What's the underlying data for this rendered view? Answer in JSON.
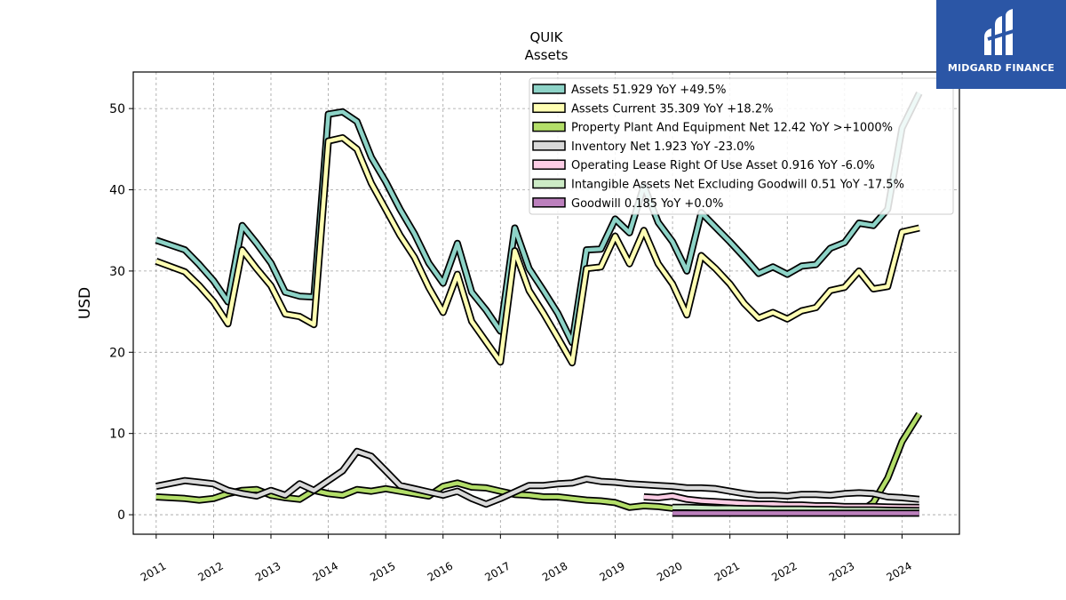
{
  "logo": {
    "text": "MIDGARD FINANCE"
  },
  "chart_data": {
    "type": "line",
    "title": "QUIK",
    "subtitle": "Assets",
    "xlabel": "",
    "ylabel": "USD",
    "ylim": [
      -2.4,
      54.5
    ],
    "yticks": [
      0,
      10,
      20,
      30,
      40,
      50
    ],
    "xlim": [
      2010.6,
      2025.0
    ],
    "xticks": [
      2011,
      2012,
      2013,
      2014,
      2015,
      2016,
      2017,
      2018,
      2019,
      2020,
      2021,
      2022,
      2023,
      2024
    ],
    "grid": true,
    "legend_position": "top-right",
    "series": [
      {
        "name": "Assets",
        "legend": "Assets  51.929 YoY +49.5%",
        "color": "#8dd3c7",
        "x": [
          2011.0,
          2011.5,
          2011.75,
          2012.0,
          2012.25,
          2012.5,
          2012.75,
          2013.0,
          2013.25,
          2013.5,
          2013.75,
          2014.0,
          2014.25,
          2014.5,
          2014.75,
          2015.0,
          2015.25,
          2015.5,
          2015.75,
          2016.0,
          2016.25,
          2016.5,
          2016.75,
          2017.0,
          2017.25,
          2017.5,
          2017.75,
          2018.0,
          2018.25,
          2018.5,
          2018.75,
          2019.0,
          2019.25,
          2019.5,
          2019.75,
          2020.0,
          2020.25,
          2020.5,
          2020.75,
          2021.0,
          2021.25,
          2021.5,
          2021.75,
          2022.0,
          2022.25,
          2022.5,
          2022.75,
          2023.0,
          2023.25,
          2023.5,
          2023.75,
          2024.0,
          2024.3
        ],
        "values": [
          33.8,
          32.6,
          30.8,
          28.8,
          26.2,
          35.6,
          33.4,
          31.0,
          27.4,
          26.9,
          26.8,
          49.3,
          49.6,
          48.4,
          44.0,
          41.0,
          37.6,
          34.6,
          31.0,
          28.5,
          33.4,
          27.4,
          25.2,
          22.6,
          35.3,
          30.3,
          27.6,
          24.8,
          21.2,
          32.6,
          32.7,
          36.4,
          34.7,
          40.5,
          36.0,
          33.6,
          30.0,
          37.2,
          35.4,
          33.6,
          31.7,
          29.7,
          30.5,
          29.6,
          30.6,
          30.8,
          32.8,
          33.5,
          35.9,
          35.6,
          37.6,
          47.6,
          51.9
        ]
      },
      {
        "name": "Assets Current",
        "legend": "Assets Current  35.309 YoY +18.2%",
        "color": "#ffffb3",
        "x": [
          2011.0,
          2011.5,
          2011.75,
          2012.0,
          2012.25,
          2012.5,
          2012.75,
          2013.0,
          2013.25,
          2013.5,
          2013.75,
          2014.0,
          2014.25,
          2014.5,
          2014.75,
          2015.0,
          2015.25,
          2015.5,
          2015.75,
          2016.0,
          2016.25,
          2016.5,
          2016.75,
          2017.0,
          2017.25,
          2017.5,
          2017.75,
          2018.0,
          2018.25,
          2018.5,
          2018.75,
          2019.0,
          2019.25,
          2019.5,
          2019.75,
          2020.0,
          2020.25,
          2020.5,
          2020.75,
          2021.0,
          2021.25,
          2021.5,
          2021.75,
          2022.0,
          2022.25,
          2022.5,
          2022.75,
          2023.0,
          2023.25,
          2023.5,
          2023.75,
          2024.0,
          2024.3
        ],
        "values": [
          31.2,
          29.9,
          28.2,
          26.2,
          23.5,
          32.6,
          30.3,
          28.2,
          24.7,
          24.4,
          23.4,
          46.0,
          46.4,
          45.0,
          40.8,
          37.6,
          34.4,
          31.7,
          28.0,
          24.9,
          29.6,
          23.8,
          21.3,
          18.8,
          32.5,
          27.6,
          24.8,
          21.8,
          18.7,
          30.3,
          30.5,
          34.3,
          30.9,
          35.0,
          30.9,
          28.4,
          24.6,
          31.9,
          30.3,
          28.4,
          26.0,
          24.2,
          24.9,
          24.1,
          25.1,
          25.5,
          27.6,
          28.0,
          30.0,
          27.8,
          28.1,
          34.8,
          35.3
        ]
      },
      {
        "name": "Property Plant And Equipment Net",
        "legend": "Property Plant And Equipment Net  12.42 YoY >+1000%",
        "color": "#b3de69",
        "x": [
          2011.0,
          2011.5,
          2011.75,
          2012.0,
          2012.25,
          2012.5,
          2012.75,
          2013.0,
          2013.25,
          2013.5,
          2013.75,
          2014.0,
          2014.25,
          2014.5,
          2014.75,
          2015.0,
          2015.25,
          2015.5,
          2015.75,
          2016.0,
          2016.25,
          2016.5,
          2016.75,
          2017.0,
          2017.25,
          2017.5,
          2017.75,
          2018.0,
          2018.25,
          2018.5,
          2018.75,
          2019.0,
          2019.25,
          2019.5,
          2019.75,
          2020.0,
          2020.25,
          2020.5,
          2020.75,
          2021.0,
          2021.25,
          2021.5,
          2021.75,
          2022.0,
          2022.25,
          2022.5,
          2022.75,
          2023.0,
          2023.25,
          2023.5,
          2023.75,
          2024.0,
          2024.3
        ],
        "values": [
          2.2,
          2.0,
          1.8,
          2.0,
          2.6,
          3.0,
          3.1,
          2.4,
          2.1,
          1.9,
          3.0,
          2.6,
          2.4,
          3.1,
          2.9,
          3.2,
          2.9,
          2.6,
          2.3,
          3.5,
          3.9,
          3.4,
          3.3,
          2.9,
          2.5,
          2.4,
          2.2,
          2.2,
          2.0,
          1.8,
          1.7,
          1.5,
          0.9,
          1.1,
          1.0,
          0.8,
          0.6,
          0.5,
          0.4,
          0.3,
          0.3,
          0.3,
          0.3,
          0.3,
          0.3,
          0.3,
          0.3,
          0.3,
          0.3,
          1.5,
          4.5,
          9.0,
          12.4
        ]
      },
      {
        "name": "Inventory Net",
        "legend": "Inventory Net  1.923 YoY -23.0%",
        "color": "#d9d9d9",
        "x": [
          2011.0,
          2011.5,
          2011.75,
          2012.0,
          2012.25,
          2012.5,
          2012.75,
          2013.0,
          2013.25,
          2013.5,
          2013.75,
          2014.0,
          2014.25,
          2014.5,
          2014.75,
          2015.0,
          2015.25,
          2015.5,
          2015.75,
          2016.0,
          2016.25,
          2016.5,
          2016.75,
          2017.0,
          2017.25,
          2017.5,
          2017.75,
          2018.0,
          2018.25,
          2018.5,
          2018.75,
          2019.0,
          2019.25,
          2019.5,
          2019.75,
          2020.0,
          2020.25,
          2020.5,
          2020.75,
          2021.0,
          2021.25,
          2021.5,
          2021.75,
          2022.0,
          2022.25,
          2022.5,
          2022.75,
          2023.0,
          2023.25,
          2023.5,
          2023.75,
          2024.0,
          2024.3
        ],
        "values": [
          3.5,
          4.2,
          4.0,
          3.8,
          3.0,
          2.6,
          2.3,
          3.0,
          2.4,
          3.8,
          3.0,
          4.2,
          5.4,
          7.8,
          7.2,
          5.4,
          3.6,
          3.2,
          2.8,
          2.4,
          2.9,
          2.0,
          1.3,
          2.0,
          2.8,
          3.6,
          3.6,
          3.8,
          3.9,
          4.4,
          4.1,
          4.0,
          3.8,
          3.7,
          3.6,
          3.5,
          3.3,
          3.3,
          3.2,
          2.9,
          2.6,
          2.4,
          2.4,
          2.3,
          2.5,
          2.5,
          2.4,
          2.6,
          2.7,
          2.6,
          2.2,
          2.1,
          1.9
        ]
      },
      {
        "name": "Operating Lease Right Of Use Asset",
        "legend": "Operating Lease Right Of Use Asset  0.916 YoY -6.0%",
        "color": "#fccde5",
        "x": [
          2019.5,
          2019.75,
          2020.0,
          2020.25,
          2020.5,
          2020.75,
          2021.0,
          2021.25,
          2021.5,
          2021.75,
          2022.0,
          2022.25,
          2022.5,
          2022.75,
          2023.0,
          2023.25,
          2023.5,
          2023.75,
          2024.0,
          2024.3
        ],
        "values": [
          2.2,
          2.1,
          2.3,
          1.9,
          1.7,
          1.6,
          1.5,
          1.4,
          1.3,
          1.3,
          1.2,
          1.2,
          1.1,
          1.1,
          1.0,
          1.0,
          1.0,
          0.95,
          0.93,
          0.92
        ]
      },
      {
        "name": "Intangible Assets Net Excluding Goodwill",
        "legend": "Intangible Assets Net Excluding Goodwill  0.51 YoY -17.5%",
        "color": "#ccebc5",
        "x": [
          2020.0,
          2020.25,
          2020.5,
          2020.75,
          2021.0,
          2021.25,
          2021.5,
          2021.75,
          2022.0,
          2022.25,
          2022.5,
          2022.75,
          2023.0,
          2023.25,
          2023.5,
          2023.75,
          2024.0,
          2024.3
        ],
        "values": [
          0.9,
          0.9,
          0.85,
          0.8,
          0.8,
          0.75,
          0.75,
          0.7,
          0.7,
          0.7,
          0.65,
          0.65,
          0.6,
          0.6,
          0.6,
          0.55,
          0.52,
          0.51
        ]
      },
      {
        "name": "Goodwill",
        "legend": "Goodwill  0.185 YoY +0.0%",
        "color": "#bc80bd",
        "x": [
          2020.0,
          2024.3
        ],
        "values": [
          0.185,
          0.185
        ]
      }
    ]
  }
}
